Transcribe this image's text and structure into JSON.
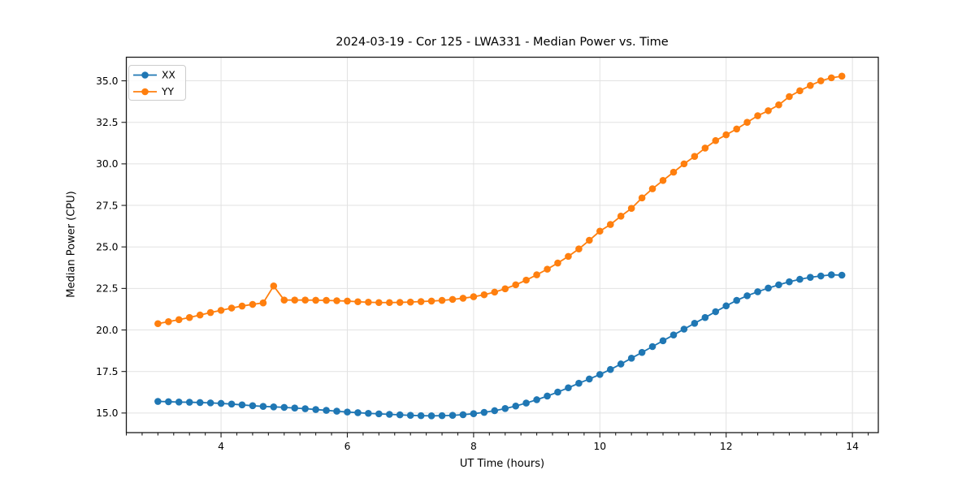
{
  "title": "2024-03-19 - Cor 125 - LWA331 - Median Power vs. Time",
  "chart_data": {
    "type": "line",
    "title": "2024-03-19 - Cor 125 - LWA331 - Median Power vs. Time",
    "xlabel": "UT Time (hours)",
    "ylabel": "Median Power (CPU)",
    "xlim": [
      2.5,
      14.41
    ],
    "ylim": [
      13.82,
      36.42
    ],
    "xticks": [
      4,
      6,
      8,
      10,
      12,
      14
    ],
    "x_minor_tick_step": 0.25,
    "yticks": [
      15.0,
      17.5,
      20.0,
      22.5,
      25.0,
      27.5,
      30.0,
      32.5,
      35.0
    ],
    "grid": true,
    "legend_position": "upper left",
    "marker": "circle",
    "x": [
      3.0,
      3.167,
      3.333,
      3.5,
      3.667,
      3.833,
      4.0,
      4.167,
      4.333,
      4.5,
      4.667,
      4.833,
      5.0,
      5.167,
      5.333,
      5.5,
      5.667,
      5.833,
      6.0,
      6.167,
      6.333,
      6.5,
      6.667,
      6.833,
      7.0,
      7.167,
      7.333,
      7.5,
      7.667,
      7.833,
      8.0,
      8.167,
      8.333,
      8.5,
      8.667,
      8.833,
      9.0,
      9.167,
      9.333,
      9.5,
      9.667,
      9.833,
      10.0,
      10.167,
      10.333,
      10.5,
      10.667,
      10.833,
      11.0,
      11.167,
      11.333,
      11.5,
      11.667,
      11.833,
      12.0,
      12.167,
      12.333,
      12.5,
      12.667,
      12.833,
      13.0,
      13.167,
      13.333,
      13.5,
      13.667,
      13.833
    ],
    "series": [
      {
        "name": "XX",
        "color": "#1f77b4",
        "values": [
          15.7,
          15.68,
          15.66,
          15.65,
          15.63,
          15.61,
          15.58,
          15.54,
          15.49,
          15.44,
          15.4,
          15.37,
          15.34,
          15.3,
          15.26,
          15.21,
          15.16,
          15.11,
          15.06,
          15.02,
          14.98,
          14.95,
          14.92,
          14.89,
          14.86,
          14.84,
          14.83,
          14.84,
          14.86,
          14.9,
          14.96,
          15.04,
          15.14,
          15.27,
          15.42,
          15.6,
          15.8,
          16.02,
          16.26,
          16.52,
          16.79,
          17.05,
          17.32,
          17.62,
          17.95,
          18.3,
          18.65,
          19.0,
          19.35,
          19.7,
          20.05,
          20.4,
          20.75,
          21.1,
          21.45,
          21.78,
          22.06,
          22.3,
          22.52,
          22.72,
          22.9,
          23.05,
          23.17,
          23.25,
          23.32,
          23.3
        ]
      },
      {
        "name": "YY",
        "color": "#ff7f0e",
        "values": [
          20.38,
          20.5,
          20.62,
          20.75,
          20.9,
          21.05,
          21.18,
          21.32,
          21.44,
          21.54,
          21.63,
          22.65,
          21.8,
          21.8,
          21.8,
          21.79,
          21.78,
          21.76,
          21.74,
          21.7,
          21.67,
          21.65,
          21.65,
          21.66,
          21.68,
          21.71,
          21.74,
          21.78,
          21.84,
          21.91,
          22.0,
          22.12,
          22.28,
          22.48,
          22.72,
          23.0,
          23.32,
          23.66,
          24.03,
          24.43,
          24.88,
          25.4,
          25.95,
          26.35,
          26.85,
          27.32,
          27.95,
          28.5,
          29.0,
          29.5,
          30.0,
          30.45,
          30.95,
          31.4,
          31.75,
          32.1,
          32.5,
          32.9,
          33.2,
          33.55,
          34.05,
          34.4,
          34.72,
          35.0,
          35.18,
          35.28
        ]
      }
    ]
  },
  "colors": {
    "background": "#ffffff",
    "grid": "#e2e2e2",
    "spine": "#1a1a1a",
    "tick_text": "#000000",
    "series_xx": "#1f77b4",
    "series_yy": "#ff7f0e",
    "legend_border": "#cccccc",
    "legend_bg": "#ffffff"
  }
}
